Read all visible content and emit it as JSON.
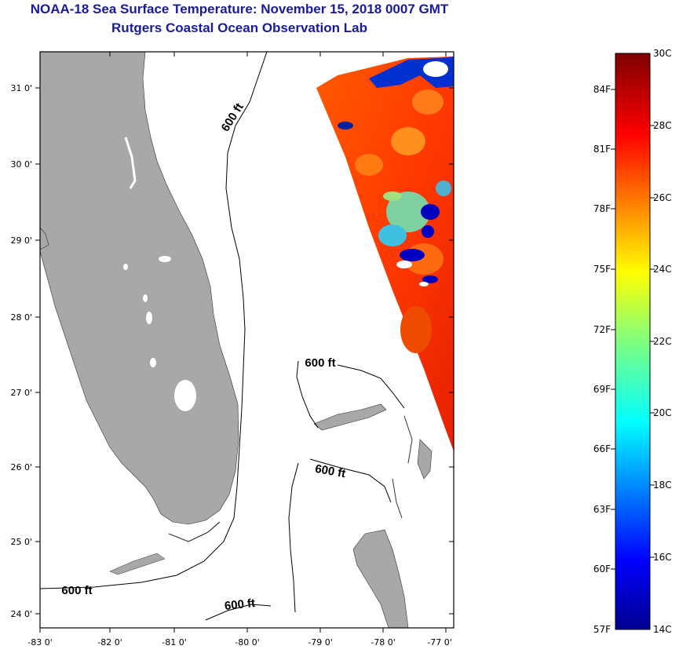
{
  "title": {
    "line1": "NOAA-18 Sea Surface Temperature:  November 15, 2018 0007 GMT",
    "line2": "Rutgers Coastal Ocean Observation Lab"
  },
  "map": {
    "lon_labels": [
      "-83 0'",
      "-82 0'",
      "-81 0'",
      "-80 0'",
      "-79 0'",
      "-78 0'",
      "-77 0'"
    ],
    "lat_labels": [
      "31 0'",
      "30 0'",
      "29 0'",
      "28 0'",
      "27 0'",
      "26 0'",
      "25 0'",
      "24 0'"
    ],
    "contour_labels": [
      "600 ft",
      "600 ft",
      "600 ft",
      "600 ft",
      "600 ft"
    ]
  },
  "colorbar": {
    "fahrenheit_labels": [
      "84F",
      "81F",
      "78F",
      "75F",
      "72F",
      "69F",
      "66F",
      "63F",
      "60F",
      "57F"
    ],
    "celsius_labels": [
      "30C",
      "28C",
      "26C",
      "24C",
      "22C",
      "20C",
      "18C",
      "16C",
      "14C"
    ],
    "range_c": [
      14,
      30
    ],
    "colors": {
      "low": "#00008f",
      "mid": "#7fff7f",
      "high": "#7f0000"
    }
  },
  "colors": {
    "land": "#a8a8a8",
    "ocean": "#ffffff",
    "title": "#1a1a9e"
  }
}
